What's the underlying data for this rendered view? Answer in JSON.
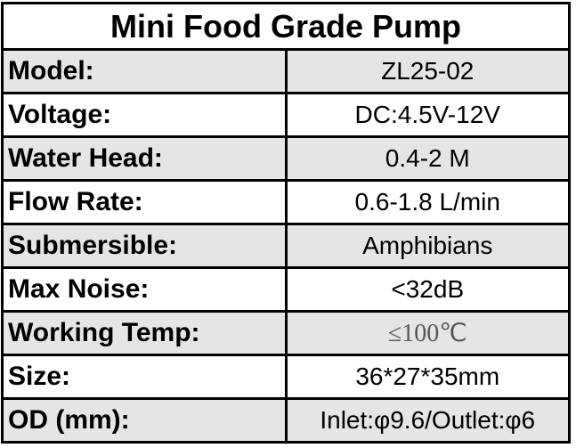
{
  "table": {
    "title": "Mini Food Grade Pump",
    "rows": [
      {
        "label": "Model:",
        "value": "ZL25-02",
        "shaded": true
      },
      {
        "label": "Voltage:",
        "value": "DC:4.5V-12V",
        "shaded": false
      },
      {
        "label": "Water Head:",
        "value": "0.4-2 M",
        "shaded": true
      },
      {
        "label": "Flow Rate:",
        "value": "0.6-1.8 L/min",
        "shaded": false
      },
      {
        "label": "Submersible:",
        "value": "Amphibians",
        "shaded": true
      },
      {
        "label": "Max Noise:",
        "value": "<32dB",
        "shaded": false
      },
      {
        "label": "Working Temp:",
        "value": "≤100℃",
        "shaded": true
      },
      {
        "label": "Size:",
        "value": "36*27*35mm",
        "shaded": false
      },
      {
        "label": "OD (mm):",
        "value": "Inlet:φ9.6/Outlet:φ6",
        "shaded": true
      }
    ]
  }
}
